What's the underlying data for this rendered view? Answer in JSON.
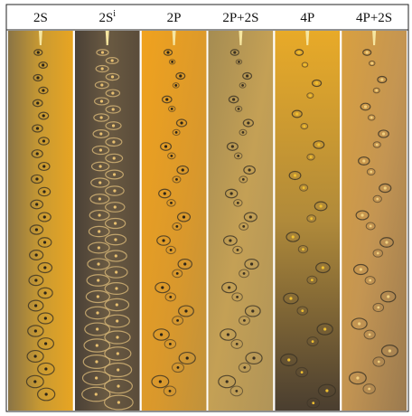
{
  "panels": [
    {
      "label": "2S"
    },
    {
      "label": "2S",
      "superscript": "i"
    },
    {
      "label": "2P"
    },
    {
      "label": "2P+2S"
    },
    {
      "label": "4P"
    },
    {
      "label": "4P+2S"
    }
  ]
}
